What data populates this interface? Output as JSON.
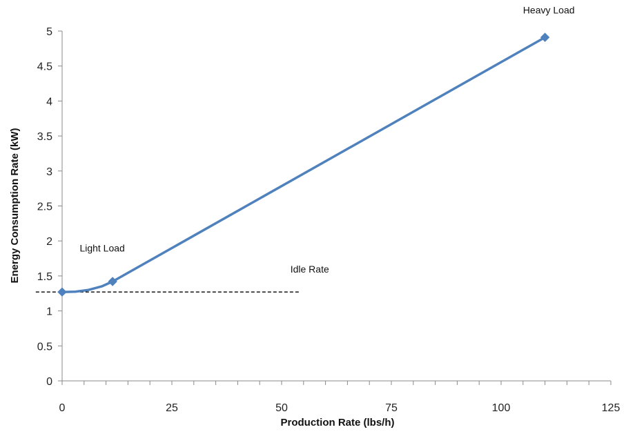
{
  "chart_data": {
    "type": "line",
    "xlabel": "Production Rate (lbs/h)",
    "ylabel": "Energy Consumption Rate (kW)",
    "xlim": [
      0,
      125
    ],
    "ylim": [
      0,
      5
    ],
    "x_ticks": [
      0,
      25,
      50,
      75,
      100,
      125
    ],
    "x_tick_labels": [
      "0",
      "25",
      "50",
      "75",
      "100",
      "125"
    ],
    "y_ticks": [
      0,
      0.5,
      1,
      1.5,
      2,
      2.5,
      3,
      3.5,
      4,
      4.5,
      5
    ],
    "y_tick_labels": [
      "0",
      "0.5",
      "1",
      "1.5",
      "2",
      "2.5",
      "3",
      "3.5",
      "4",
      "4.5",
      "5"
    ],
    "grid": false,
    "legend": "none",
    "series": [
      {
        "color": "#4f81bd",
        "marker": "diamond",
        "curve_points": [
          {
            "x": 0,
            "y": 1.27
          },
          {
            "x": 3,
            "y": 1.275
          },
          {
            "x": 6,
            "y": 1.3
          },
          {
            "x": 9,
            "y": 1.35
          },
          {
            "x": 11.5,
            "y": 1.42
          },
          {
            "x": 110,
            "y": 4.91
          }
        ],
        "marker_points": [
          {
            "x": 0,
            "y": 1.27
          },
          {
            "x": 11.5,
            "y": 1.42
          },
          {
            "x": 110,
            "y": 4.91
          }
        ]
      }
    ],
    "reference_line": {
      "y": 1.27,
      "x_range": [
        -6,
        54
      ],
      "style": "dashed",
      "color": "#000000"
    },
    "annotations": [
      {
        "text": "Light Load",
        "x": 4,
        "y": 1.85
      },
      {
        "text": "Idle Rate",
        "x": 52,
        "y": 1.55
      },
      {
        "text": "Heavy Load",
        "x": 105,
        "y": 5.25
      }
    ]
  }
}
